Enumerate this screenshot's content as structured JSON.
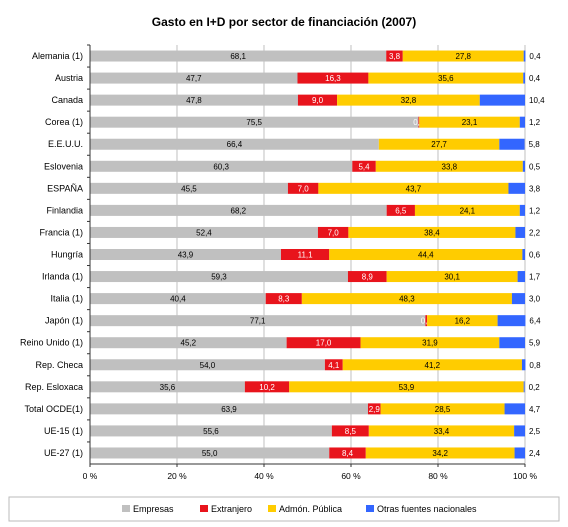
{
  "chart_data": {
    "type": "bar",
    "orientation": "horizontal",
    "stacked": true,
    "title": "Gasto en I+D por sector de financiación (2007)",
    "categories": [
      "Alemania (1)",
      "Austria",
      "Canada",
      "Corea (1)",
      "E.E.U.U.",
      "Eslovenia",
      "ESPAÑA",
      "Finlandia",
      "Francia (1)",
      "Hungría",
      "Irlanda (1)",
      "Italia (1)",
      "Japón (1)",
      "Reino Unido (1)",
      "Rep. Checa",
      "Rep. Esloxaca",
      "Total OCDE(1)",
      "UE-15 (1)",
      "UE-27 (1)"
    ],
    "series": [
      {
        "name": "Empresas",
        "color": "#c0c0c0",
        "values": [
          68.1,
          47.7,
          47.8,
          75.5,
          66.4,
          60.3,
          45.5,
          68.2,
          52.4,
          43.9,
          59.3,
          40.4,
          77.1,
          45.2,
          54.0,
          35.6,
          63.9,
          55.6,
          55.0
        ],
        "labels": [
          "68,1",
          "47,7",
          "47,8",
          "75,5",
          "66,4",
          "60,3",
          "45,5",
          "68,2",
          "52,4",
          "43,9",
          "59,3",
          "40,4",
          "77,1",
          "45,2",
          "54,0",
          "35,6",
          "63,9",
          "55,6",
          "55,0"
        ]
      },
      {
        "name": "Extranjero",
        "color": "#e8141c",
        "values": [
          3.8,
          16.3,
          9.0,
          0.2,
          0.0,
          5.4,
          7.0,
          6.5,
          7.0,
          11.1,
          8.9,
          8.3,
          0.4,
          17.0,
          4.1,
          10.2,
          2.9,
          8.5,
          8.4
        ],
        "labels": [
          "3,8",
          "16,3",
          "9,0",
          "0,2",
          "",
          "5,4",
          "7,0",
          "6,5",
          "7,0",
          "11,1",
          "8,9",
          "8,3",
          "0,4",
          "17,0",
          "4,1",
          "10,2",
          "2,9",
          "8,5",
          "8,4"
        ]
      },
      {
        "name": "Admón. Pública",
        "color": "#ffcc00",
        "values": [
          27.8,
          35.6,
          32.8,
          23.1,
          27.7,
          33.8,
          43.7,
          24.1,
          38.4,
          44.4,
          30.1,
          48.3,
          16.2,
          31.9,
          41.2,
          53.9,
          28.5,
          33.4,
          34.2
        ],
        "labels": [
          "27,8",
          "35,6",
          "32,8",
          "23,1",
          "27,7",
          "33,8",
          "43,7",
          "24,1",
          "38,4",
          "44,4",
          "30,1",
          "48,3",
          "16,2",
          "31,9",
          "41,2",
          "53,9",
          "28,5",
          "33,4",
          "34,2"
        ]
      },
      {
        "name": "Otras fuentes nacionales",
        "color": "#3366ff",
        "values": [
          0.4,
          0.4,
          10.4,
          1.2,
          5.8,
          0.5,
          3.8,
          1.2,
          2.2,
          0.6,
          1.7,
          3.0,
          6.4,
          5.9,
          0.8,
          0.2,
          4.7,
          2.5,
          2.4
        ],
        "labels": [
          "0,4",
          "0,4",
          "10,4",
          "1,2",
          "5,8",
          "0,5",
          "3,8",
          "1,2",
          "2,2",
          "0,6",
          "1,7",
          "3,0",
          "6,4",
          "5,9",
          "0,8",
          "0,2",
          "4,7",
          "2,5",
          "2,4"
        ]
      }
    ],
    "xlim": [
      0,
      100
    ],
    "xticks": [
      "0 %",
      "20 %",
      "40 %",
      "60 %",
      "80 %",
      "100 %"
    ],
    "grid": true,
    "legend_position": "bottom"
  }
}
